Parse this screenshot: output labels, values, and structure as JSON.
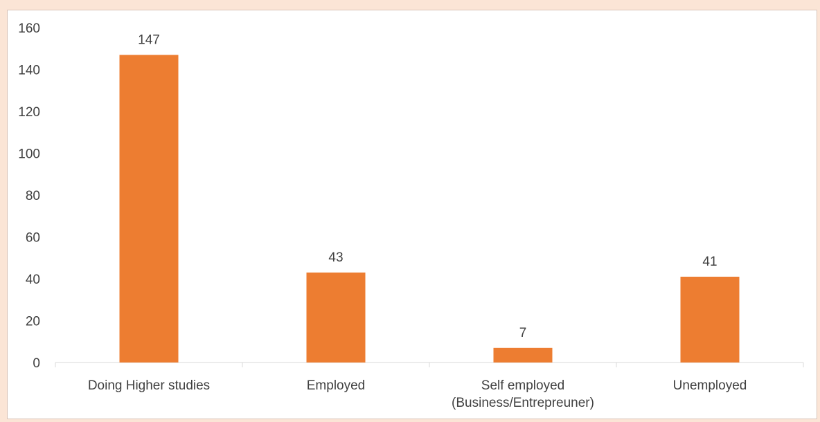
{
  "chart_data": {
    "type": "bar",
    "categories": [
      [
        "Doing Higher studies"
      ],
      [
        "Employed"
      ],
      [
        "Self employed",
        "(Business/Entrepreuner)"
      ],
      [
        "Unemployed"
      ]
    ],
    "values": [
      147,
      43,
      7,
      41
    ],
    "yticks": [
      0,
      20,
      40,
      60,
      80,
      100,
      120,
      140,
      160
    ],
    "ylim": [
      0,
      160
    ],
    "grid": false,
    "bar_color": "#ed7d31",
    "axis_color": "#d9d9d9",
    "background_color": "#fbe5d6",
    "data_labels": true
  }
}
